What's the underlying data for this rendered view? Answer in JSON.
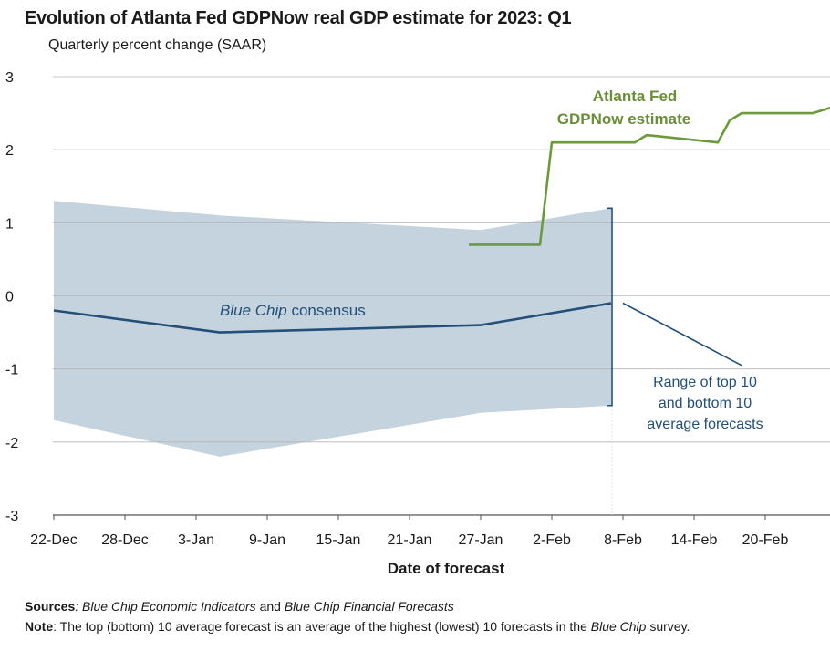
{
  "title": "Evolution of Atlanta Fed GDPNow real GDP estimate for 2023: Q1",
  "subtitle": "Quarterly percent change (SAAR)",
  "colors": {
    "gdpnow": "#6b9a3c",
    "consensus": "#244f78",
    "range_fill": "#c5d3de",
    "grid": "#b5b5b5"
  },
  "annotations": {
    "gdpnow_line1": "Atlanta Fed",
    "gdpnow_line2": "GDPNow estimate",
    "consensus_italic": "Blue Chip",
    "consensus_rest": " consensus",
    "range_line1": "Range of top 10",
    "range_line2": "and bottom 10",
    "range_line3": "average forecasts"
  },
  "footer": {
    "sources_label": "Sources",
    "sources_sep": ": ",
    "sources_src1": "Blue Chip Economic Indicators",
    "sources_and": " and ",
    "sources_src2": "Blue Chip Financial Forecasts",
    "note_label": "Note",
    "note_text1": ": The top (bottom) 10 average forecast is an average of the highest (lowest) 10 forecasts in the ",
    "note_italic": "Blue Chip",
    "note_text2": " survey."
  },
  "chart_data": {
    "type": "line",
    "title": "Evolution of Atlanta Fed GDPNow real GDP estimate for 2023: Q1",
    "subtitle": "Quarterly percent change (SAAR)",
    "xlabel": "Date of forecast",
    "ylabel": "",
    "ylim": [
      -3,
      3
    ],
    "y_ticks": [
      3,
      2,
      1,
      0,
      -1,
      -2,
      -3
    ],
    "y_tick_labels": [
      "3",
      "2",
      "1",
      "0",
      "-1",
      "-2",
      "-3"
    ],
    "x_ticks": [
      "2022-12-22",
      "2022-12-28",
      "2023-01-03",
      "2023-01-09",
      "2023-01-15",
      "2023-01-21",
      "2023-01-27",
      "2023-02-02",
      "2023-02-08",
      "2023-02-14",
      "2023-02-20"
    ],
    "x_tick_labels": [
      "22-Dec",
      "28-Dec",
      "3-Jan",
      "9-Jan",
      "15-Jan",
      "21-Jan",
      "27-Jan",
      "2-Feb",
      "8-Feb",
      "14-Feb",
      "20-Feb"
    ],
    "xlim": [
      "2022-12-22",
      "2023-02-28"
    ],
    "grid": true,
    "series": [
      {
        "name": "Atlanta Fed GDPNow estimate",
        "points": [
          {
            "x": "2023-01-26",
            "y": 0.7
          },
          {
            "x": "2023-02-01",
            "y": 0.7
          },
          {
            "x": "2023-02-02",
            "y": 2.1
          },
          {
            "x": "2023-02-09",
            "y": 2.1
          },
          {
            "x": "2023-02-10",
            "y": 2.2
          },
          {
            "x": "2023-02-16",
            "y": 2.1
          },
          {
            "x": "2023-02-17",
            "y": 2.4
          },
          {
            "x": "2023-02-18",
            "y": 2.5
          },
          {
            "x": "2023-02-24",
            "y": 2.5
          },
          {
            "x": "2023-02-28",
            "y": 2.7
          }
        ]
      },
      {
        "name": "Blue Chip consensus",
        "points": [
          {
            "x": "2022-12-22",
            "y": -0.2
          },
          {
            "x": "2023-01-05",
            "y": -0.5
          },
          {
            "x": "2023-01-27",
            "y": -0.4
          },
          {
            "x": "2023-02-07",
            "y": -0.1
          }
        ]
      }
    ],
    "range_band": {
      "name": "Range of top 10 and bottom 10 average forecasts",
      "points": [
        {
          "x": "2022-12-22",
          "high": 1.3,
          "low": -1.7
        },
        {
          "x": "2023-01-05",
          "high": 1.1,
          "low": -2.2
        },
        {
          "x": "2023-01-27",
          "high": 0.9,
          "low": -1.6
        },
        {
          "x": "2023-02-07",
          "high": 1.2,
          "low": -1.5
        }
      ]
    },
    "projection": {
      "from": {
        "x": "2023-02-08",
        "y": -0.1
      },
      "to": {
        "x": "2023-02-18",
        "y": -0.95
      }
    }
  }
}
